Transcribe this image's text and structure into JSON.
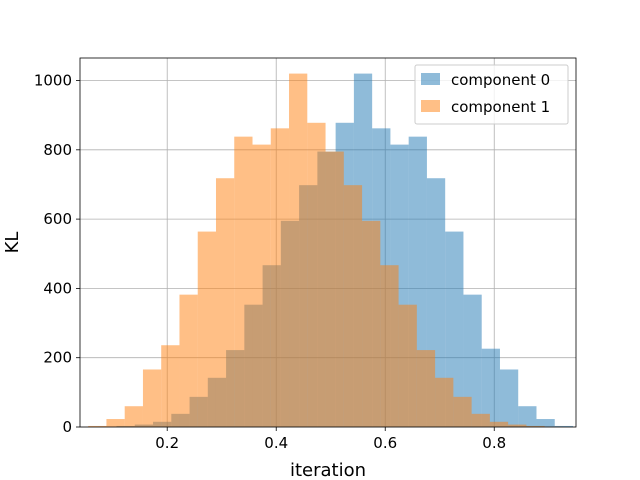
{
  "chart_data": {
    "type": "bar",
    "title": "",
    "xlabel": "iteration",
    "ylabel": "KL",
    "xlim": [
      0.04,
      0.95
    ],
    "ylim": [
      0,
      1065
    ],
    "xticks": [
      0.2,
      0.4,
      0.6,
      0.8
    ],
    "xtick_labels": [
      "0.2",
      "0.4",
      "0.6",
      "0.8"
    ],
    "yticks": [
      0,
      200,
      400,
      600,
      800,
      1000
    ],
    "ytick_labels": [
      "0",
      "200",
      "400",
      "600",
      "800",
      "1000"
    ],
    "grid": true,
    "legend_position": "top-right",
    "series": [
      {
        "name": "component 0",
        "color": "#1f77b4",
        "alpha": 0.5,
        "bin_edges": [
          0.0735,
          0.107,
          0.1405,
          0.174,
          0.2075,
          0.241,
          0.2745,
          0.308,
          0.3415,
          0.375,
          0.4085,
          0.442,
          0.4755,
          0.509,
          0.5425,
          0.576,
          0.6095,
          0.643,
          0.6765,
          0.71,
          0.7435,
          0.777,
          0.8105,
          0.844,
          0.8775,
          0.911,
          0.9445
        ],
        "counts": [
          1,
          3,
          7,
          15,
          38,
          87,
          142,
          222,
          353,
          467,
          595,
          698,
          795,
          878,
          1020,
          862,
          815,
          838,
          718,
          564,
          382,
          226,
          166,
          60,
          23,
          3
        ]
      },
      {
        "name": "component 1",
        "color": "#ff7f0e",
        "alpha": 0.5,
        "bin_edges": [
          0.055,
          0.0885,
          0.122,
          0.1555,
          0.189,
          0.2225,
          0.256,
          0.2895,
          0.323,
          0.3565,
          0.39,
          0.4235,
          0.457,
          0.4905,
          0.524,
          0.5575,
          0.591,
          0.6245,
          0.658,
          0.6915,
          0.725,
          0.7585,
          0.792,
          0.8255,
          0.859,
          0.8925,
          0.926
        ],
        "counts": [
          3,
          23,
          60,
          166,
          236,
          382,
          564,
          718,
          838,
          815,
          862,
          1020,
          878,
          795,
          698,
          595,
          467,
          353,
          222,
          142,
          87,
          38,
          15,
          7,
          3,
          1
        ]
      }
    ]
  }
}
